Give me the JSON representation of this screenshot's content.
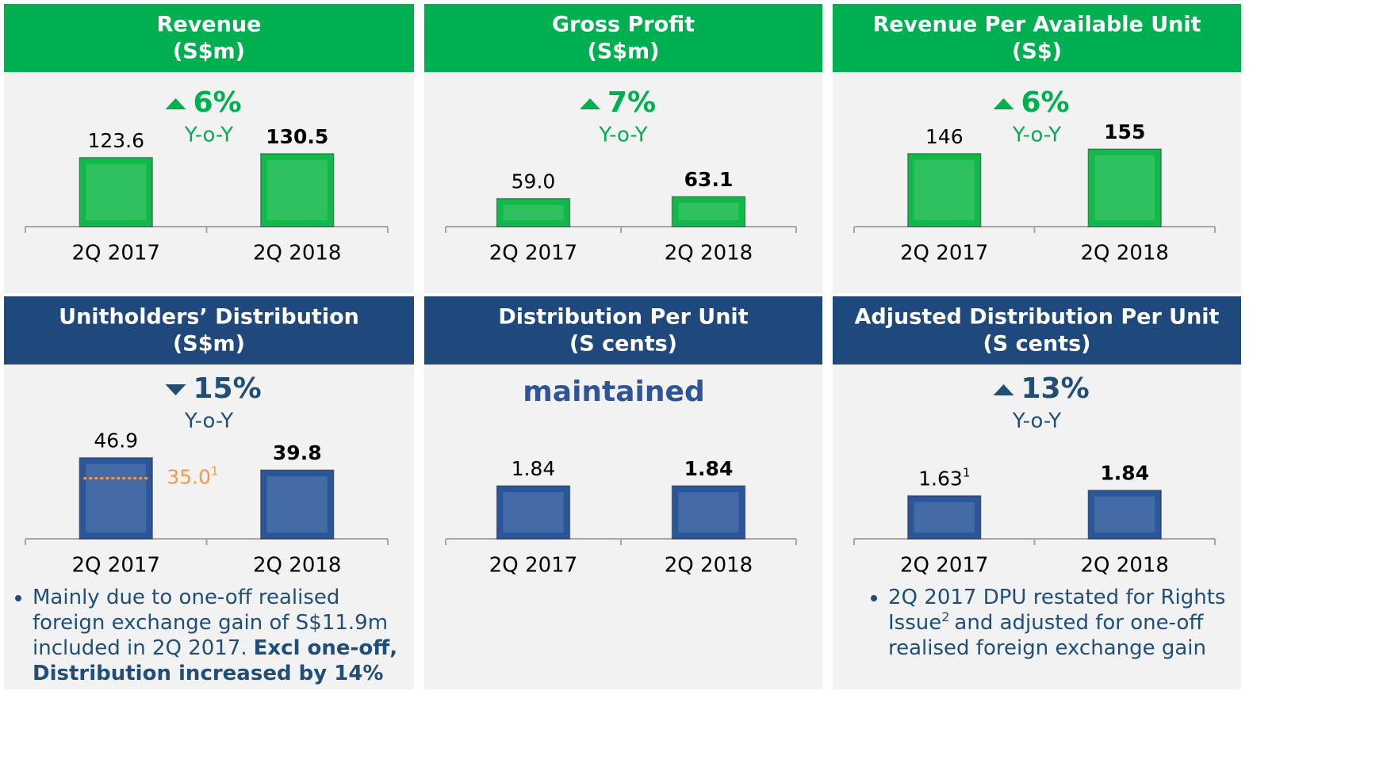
{
  "chart_data": [
    {
      "type": "bar",
      "title": "Revenue",
      "subtitle": "(S$m)",
      "header_color": "#00b050",
      "color": "#13b84b",
      "accent_color": "#00b050",
      "change": {
        "value": 6,
        "label": "6%"
      },
      "direction": "up",
      "change_caption": "Y-o-Y",
      "categories": [
        "2Q 2017",
        "2Q 2018"
      ],
      "values": [
        123.6,
        130.5
      ],
      "ylim": [
        0,
        170
      ]
    },
    {
      "type": "bar",
      "title": "Gross Profit",
      "subtitle": "(S$m)",
      "header_color": "#00b050",
      "color": "#13b84b",
      "accent_color": "#00b050",
      "change": {
        "value": 7,
        "label": "7%"
      },
      "direction": "up",
      "change_caption": "Y-o-Y",
      "categories": [
        "2Q 2017",
        "2Q 2018"
      ],
      "values": [
        59.0,
        63.1
      ],
      "value_labels": [
        "59.0",
        "63.1"
      ],
      "ylim": [
        0,
        200
      ]
    },
    {
      "type": "bar",
      "title": "Revenue Per Available Unit",
      "subtitle": "(S$)",
      "header_color": "#00b050",
      "color": "#13b84b",
      "accent_color": "#00b050",
      "change": {
        "value": 6,
        "label": "6%"
      },
      "direction": "up",
      "change_caption": "Y-o-Y",
      "categories": [
        "2Q 2017",
        "2Q 2018"
      ],
      "values": [
        146,
        155
      ],
      "ylim": [
        0,
        190
      ]
    },
    {
      "type": "bar",
      "title": "Unitholders’ Distribution",
      "subtitle": "(S$m)",
      "header_color": "#1f497d",
      "color": "#2b579a",
      "accent_color": "#1f4e79",
      "change": {
        "value": 15,
        "label": "15%"
      },
      "direction": "down",
      "change_caption": "Y-o-Y",
      "categories": [
        "2Q 2017",
        "2Q 2018"
      ],
      "values": [
        46.9,
        39.8
      ],
      "ylim": [
        0,
        55
      ],
      "reference": {
        "value": 35.0,
        "label": "35.0",
        "superscript": "1",
        "color": "#f79646"
      },
      "note": [
        {
          "text": "Mainly due to one-off realised foreign exchange gain of S$11.9m included in 2Q 2017.",
          "style": "normal"
        },
        {
          "text": "Excl one-off, Distribution increased by 14%",
          "style": "bold"
        }
      ]
    },
    {
      "type": "bar",
      "title": "Distribution Per Unit",
      "subtitle": "(S cents)",
      "header_color": "#1f497d",
      "color": "#2b579a",
      "accent_color": "#2f5597",
      "change_text": "maintained",
      "categories": [
        "2Q 2017",
        "2Q 2018"
      ],
      "values": [
        1.84,
        1.84
      ],
      "ylim": [
        0,
        3.3
      ]
    },
    {
      "type": "bar",
      "title": "Adjusted Distribution Per Unit",
      "subtitle": "(S cents)",
      "header_color": "#1f497d",
      "color": "#2b579a",
      "accent_color": "#1f4e79",
      "change": {
        "value": 13,
        "label": "13%"
      },
      "direction": "up",
      "change_caption": "Y-o-Y",
      "categories": [
        "2Q 2017",
        "2Q 2018"
      ],
      "values": [
        1.63,
        1.84
      ],
      "value_labels": [
        "1.63",
        "1.84"
      ],
      "value_label_superscripts": [
        "1",
        null
      ],
      "ylim": [
        0,
        3.6
      ],
      "note": [
        {
          "text": "2Q 2017 DPU restated for Rights Issue",
          "style": "normal"
        },
        {
          "text": "2",
          "style": "sup"
        },
        {
          "text": "and adjusted for one-off realised foreign exchange gain",
          "style": "normal"
        }
      ]
    }
  ]
}
